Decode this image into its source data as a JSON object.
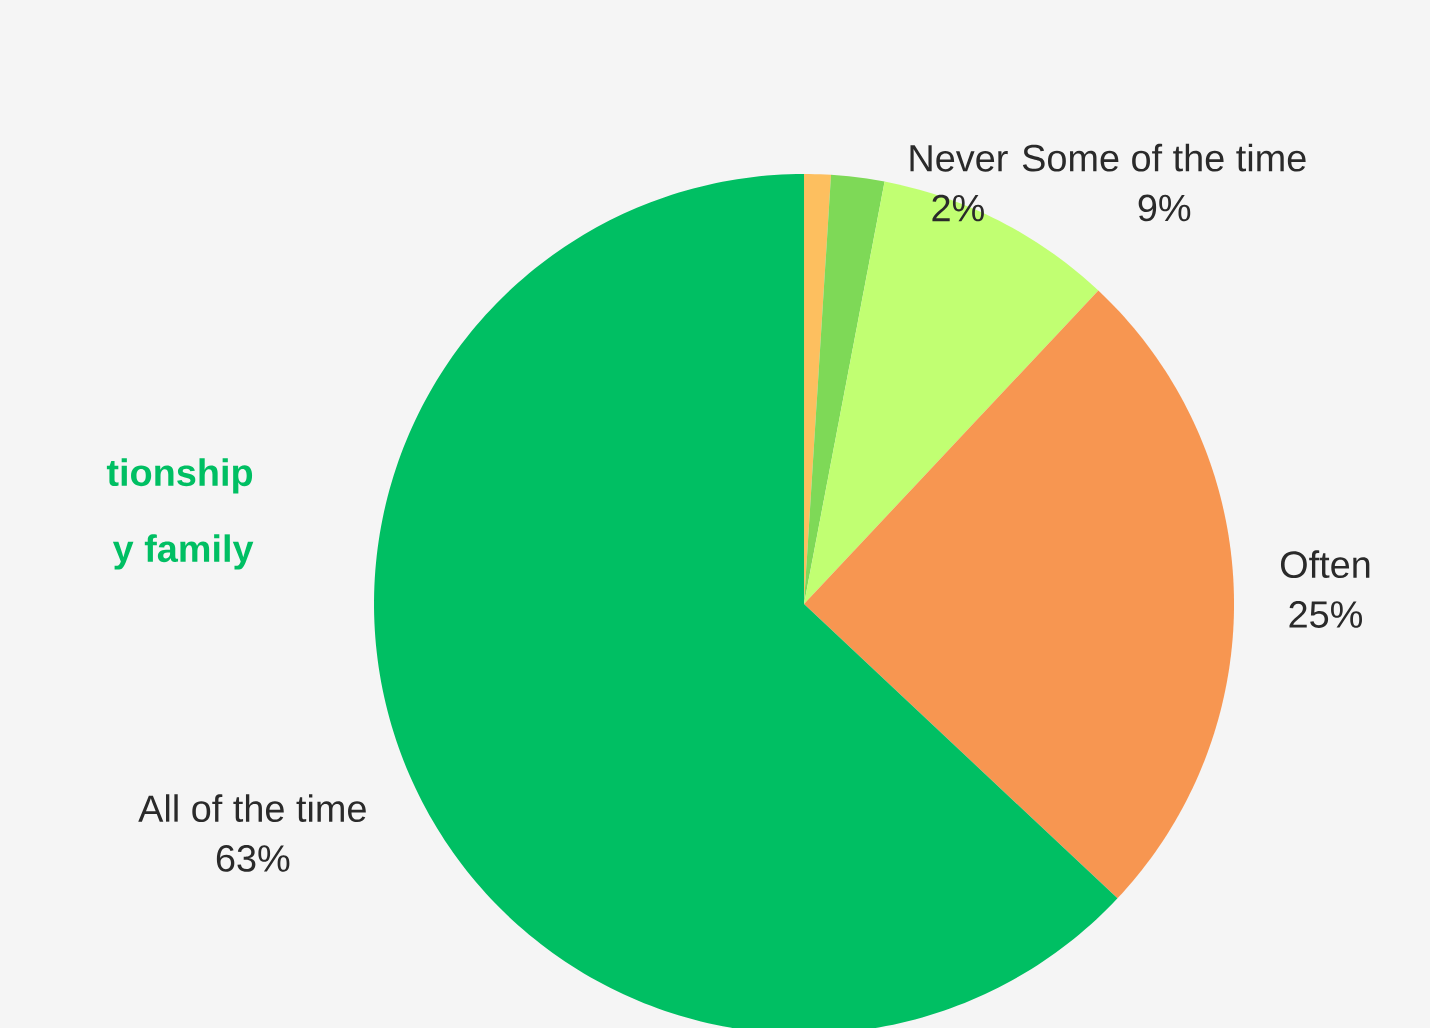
{
  "chart_data": {
    "type": "pie",
    "categories": [
      null,
      "Never",
      "Some of the time",
      "Often",
      "All of the time"
    ],
    "values": [
      1,
      2,
      9,
      25,
      63
    ],
    "value_labels": [
      null,
      "2%",
      "9%",
      "25%",
      "63%"
    ],
    "colors": [
      "#fdbf5f",
      "#7ed957",
      "#c1ff72",
      "#f79651",
      "#00bf63"
    ],
    "annotations": [
      "tionship",
      "y family"
    ]
  }
}
